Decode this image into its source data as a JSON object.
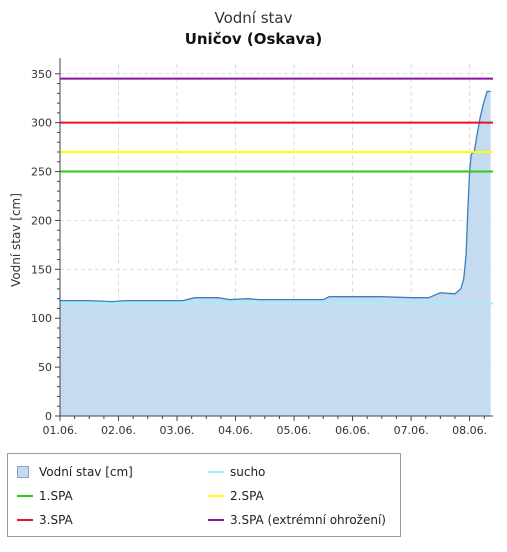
{
  "chart_data": {
    "type": "area",
    "title": "Vodní stav",
    "subtitle": "Uničov (Oskava)",
    "ylabel": "Vodní stav [cm]",
    "xlabel": "",
    "ylim": [
      0,
      360
    ],
    "xlim": [
      0,
      7.4
    ],
    "yticks": [
      0,
      50,
      100,
      150,
      200,
      250,
      300,
      350
    ],
    "xticks": [
      {
        "x": 0,
        "label": "01.06."
      },
      {
        "x": 1,
        "label": "02.06."
      },
      {
        "x": 2,
        "label": "03.06."
      },
      {
        "x": 3,
        "label": "04.06."
      },
      {
        "x": 4,
        "label": "05.06."
      },
      {
        "x": 5,
        "label": "06.06."
      },
      {
        "x": 6,
        "label": "07.06."
      },
      {
        "x": 7,
        "label": "08.06."
      }
    ],
    "grid": true,
    "series": [
      {
        "name": "Vodní stav [cm]",
        "color": "#3c7fc1",
        "fill": "#c5dbef",
        "points": [
          [
            0.0,
            118
          ],
          [
            0.5,
            118
          ],
          [
            0.9,
            117
          ],
          [
            1.1,
            118
          ],
          [
            1.6,
            118
          ],
          [
            2.1,
            118
          ],
          [
            2.3,
            121
          ],
          [
            2.7,
            121
          ],
          [
            2.9,
            119
          ],
          [
            3.2,
            120
          ],
          [
            3.4,
            119
          ],
          [
            3.9,
            119
          ],
          [
            4.2,
            119
          ],
          [
            4.5,
            119
          ],
          [
            4.6,
            122
          ],
          [
            5.0,
            122
          ],
          [
            5.5,
            122
          ],
          [
            6.0,
            121
          ],
          [
            6.3,
            121
          ],
          [
            6.5,
            126
          ],
          [
            6.75,
            125
          ],
          [
            6.85,
            130
          ],
          [
            6.9,
            140
          ],
          [
            6.94,
            165
          ],
          [
            6.97,
            210
          ],
          [
            7.0,
            250
          ],
          [
            7.03,
            268
          ],
          [
            7.08,
            270
          ],
          [
            7.12,
            285
          ],
          [
            7.18,
            305
          ],
          [
            7.24,
            320
          ],
          [
            7.3,
            332
          ],
          [
            7.36,
            332
          ]
        ]
      }
    ],
    "thresholds": [
      {
        "name": "sucho",
        "value": 115,
        "color": "#a8ecf7"
      },
      {
        "name": "1.SPA",
        "value": 250,
        "color": "#2ec914"
      },
      {
        "name": "2.SPA",
        "value": 270,
        "color": "#ffff00"
      },
      {
        "name": "3.SPA",
        "value": 300,
        "color": "#e5142a"
      },
      {
        "name": "3.SPA (extrémní ohrožení)",
        "value": 345,
        "color": "#8a15a3"
      }
    ],
    "legend_position": "bottom-left"
  }
}
